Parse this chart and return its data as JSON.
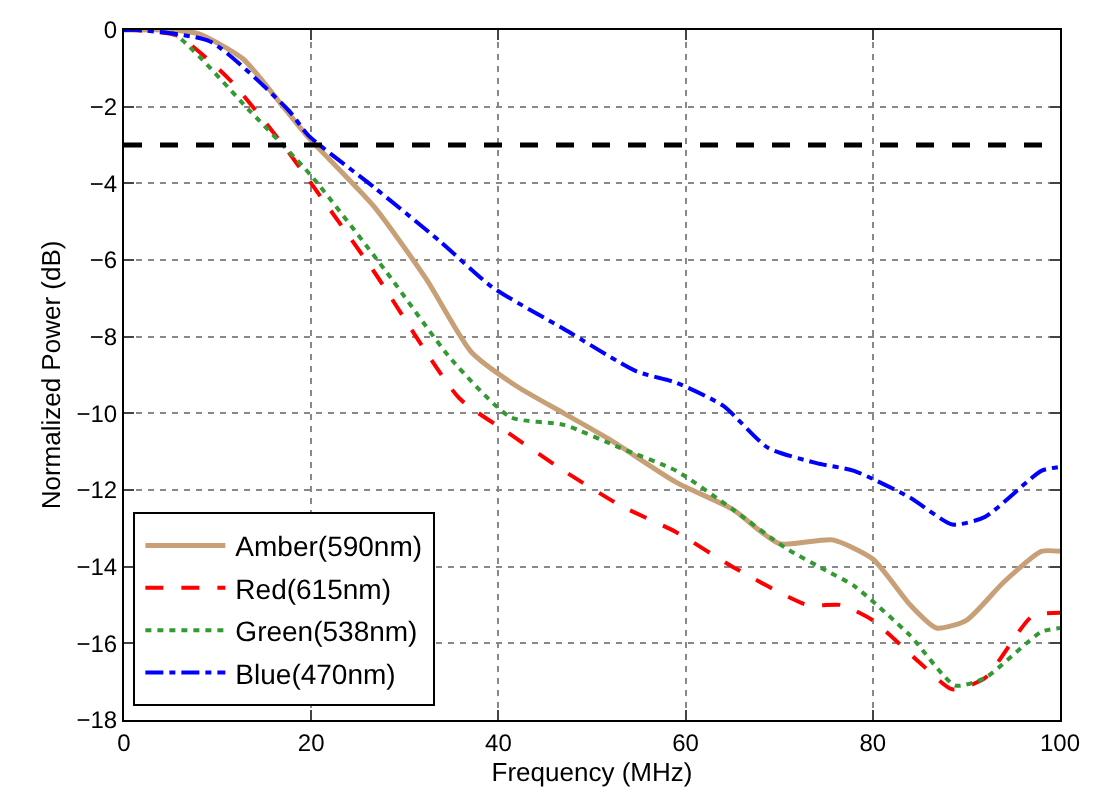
{
  "chart_data": {
    "type": "line",
    "xlabel": "Frequency (MHz)",
    "ylabel": "Normalized Power (dB)",
    "xlim": [
      0,
      100
    ],
    "ylim": [
      -18,
      0
    ],
    "xticks": [
      0,
      20,
      40,
      60,
      80,
      100
    ],
    "yticks": [
      -18,
      -16,
      -14,
      -12,
      -10,
      -8,
      -6,
      -4,
      -2,
      0
    ],
    "grid": true,
    "legend": "bottom left",
    "ref_lines": [
      {
        "axis": "y",
        "value": -3,
        "color": "#000000",
        "line_style": "dashed"
      }
    ],
    "series": [
      {
        "name": "Amber(590nm)",
        "color": "#c8a077",
        "line_style": "solid",
        "x": [
          0,
          5,
          8,
          12.7,
          17,
          19.7,
          26.7,
          32.3,
          37.1,
          42,
          47,
          52,
          59,
          65,
          70,
          75.7,
          80,
          84,
          86.8,
          90,
          94,
          98,
          100
        ],
        "values": [
          0,
          0,
          -0.1,
          -0.75,
          -2.0,
          -2.8,
          -4.6,
          -6.5,
          -8.4,
          -9.3,
          -10.0,
          -10.7,
          -11.8,
          -12.5,
          -13.4,
          -13.3,
          -13.8,
          -15.0,
          -15.6,
          -15.4,
          -14.4,
          -13.6,
          -13.6
        ]
      },
      {
        "name": "Red(615nm)",
        "color": "#ff0000",
        "line_style": "dashed",
        "x": [
          0,
          0.8,
          5.7,
          11.3,
          17,
          19.7,
          26.7,
          35.8,
          41,
          47,
          53,
          59,
          65,
          73,
          76.6,
          80,
          85,
          88.5,
          92,
          97,
          100
        ],
        "values": [
          0,
          0,
          -0.15,
          -1.3,
          -3.0,
          -3.9,
          -6.3,
          -9.6,
          -10.5,
          -11.5,
          -12.4,
          -13.1,
          -14.0,
          -15.0,
          -15.0,
          -15.4,
          -16.5,
          -17.2,
          -16.9,
          -15.3,
          -15.2
        ]
      },
      {
        "name": "Green(538nm)",
        "color": "#339933",
        "line_style": "dotted",
        "x": [
          0,
          5,
          13.4,
          20,
          28,
          35,
          41.3,
          47,
          53,
          59,
          65,
          70.6,
          75,
          78,
          84,
          88.8,
          92,
          98,
          100
        ],
        "values": [
          0,
          -0.05,
          -2.1,
          -3.8,
          -6.3,
          -8.6,
          -10.1,
          -10.3,
          -10.9,
          -11.5,
          -12.5,
          -13.5,
          -14.1,
          -14.5,
          -15.8,
          -17.1,
          -16.9,
          -15.7,
          -15.6
        ]
      },
      {
        "name": "Blue(470nm)",
        "color": "#0000ff",
        "line_style": "dashdot",
        "x": [
          0,
          1.5,
          9.2,
          17.6,
          19.7,
          26.7,
          33.7,
          39.3,
          47,
          54.7,
          59,
          64,
          68.8,
          74,
          78,
          84,
          88.5,
          92,
          98,
          100
        ],
        "values": [
          0,
          0,
          -0.3,
          -2.1,
          -2.75,
          -4.1,
          -5.5,
          -6.7,
          -7.8,
          -8.9,
          -9.2,
          -9.8,
          -10.9,
          -11.3,
          -11.5,
          -12.2,
          -12.9,
          -12.7,
          -11.5,
          -11.4
        ]
      }
    ]
  }
}
